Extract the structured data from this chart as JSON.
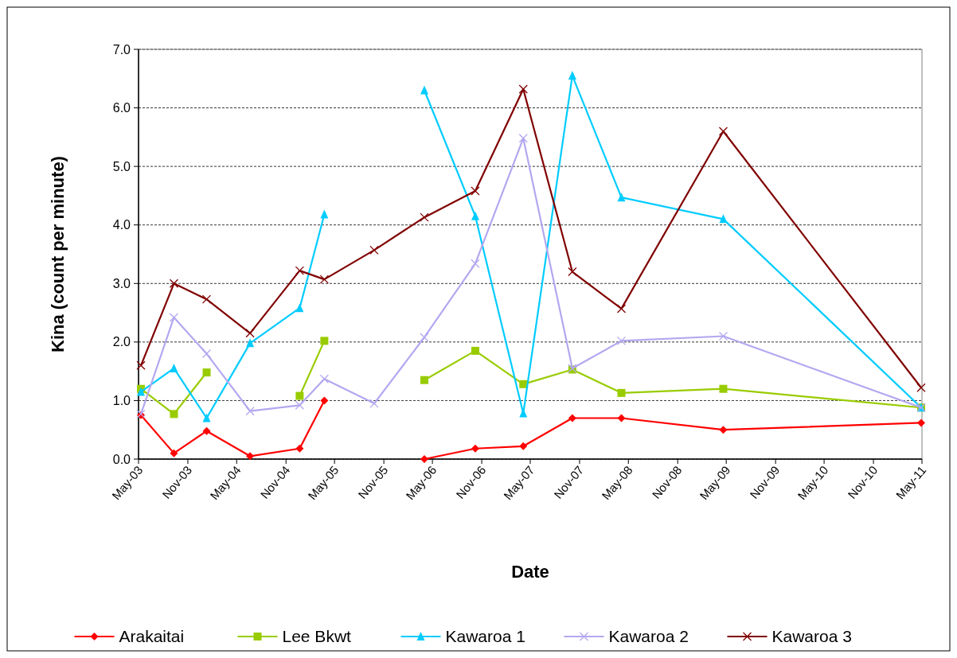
{
  "chart_data": {
    "type": "line",
    "xlabel": "Date",
    "ylabel": "Kina (count per minute)",
    "x": [
      "2003-05-10",
      "2003-09-10",
      "2004-01-10",
      "2004-06-20",
      "2004-12-22",
      "2005-03-24",
      "2005-09-26",
      "2006-04-01",
      "2006-10-08",
      "2007-04-05",
      "2007-10-05",
      "2008-04-05",
      "2009-04-20",
      "2011-04-28"
    ],
    "series": [
      {
        "name": "Arakaitai",
        "color": "#ff0000",
        "marker": "diamond",
        "values": [
          0.75,
          0.1,
          0.48,
          0.05,
          0.18,
          1.0,
          null,
          0.0,
          0.18,
          0.22,
          0.7,
          0.7,
          0.5,
          0.62
        ]
      },
      {
        "name": "Lee Bkwt",
        "color": "#99cc00",
        "marker": "square",
        "values": [
          1.2,
          0.77,
          1.48,
          null,
          1.08,
          2.02,
          null,
          1.35,
          1.85,
          1.28,
          1.53,
          1.13,
          1.2,
          0.88
        ]
      },
      {
        "name": "Kawaroa 1",
        "color": "#00ccff",
        "marker": "triangle",
        "values": [
          1.15,
          1.55,
          0.7,
          1.98,
          2.58,
          4.18,
          null,
          6.3,
          4.15,
          0.78,
          6.55,
          4.47,
          4.1,
          0.88
        ]
      },
      {
        "name": "Kawaroa 2",
        "color": "#b4a7f0",
        "marker": "cross",
        "values": [
          0.77,
          2.42,
          1.8,
          0.82,
          0.92,
          1.37,
          0.95,
          2.08,
          3.34,
          5.48,
          1.55,
          2.02,
          2.1,
          0.88
        ]
      },
      {
        "name": "Kawaroa 3",
        "color": "#800000",
        "marker": "cross",
        "values": [
          1.6,
          3.0,
          2.73,
          2.15,
          3.22,
          3.07,
          3.57,
          4.13,
          4.58,
          6.32,
          3.2,
          2.57,
          5.6,
          1.22
        ]
      }
    ],
    "xlim": [
      "2003-05-01",
      "2011-05-01"
    ],
    "xticks": [
      {
        "value": "2003-05-01",
        "label": "May-03"
      },
      {
        "value": "2003-11-01",
        "label": "Nov-03"
      },
      {
        "value": "2004-05-01",
        "label": "May-04"
      },
      {
        "value": "2004-11-01",
        "label": "Nov-04"
      },
      {
        "value": "2005-05-01",
        "label": "May-05"
      },
      {
        "value": "2005-11-01",
        "label": "Nov-05"
      },
      {
        "value": "2006-05-01",
        "label": "May-06"
      },
      {
        "value": "2006-11-01",
        "label": "Nov-06"
      },
      {
        "value": "2007-05-01",
        "label": "May-07"
      },
      {
        "value": "2007-11-01",
        "label": "Nov-07"
      },
      {
        "value": "2008-05-01",
        "label": "May-08"
      },
      {
        "value": "2008-11-01",
        "label": "Nov-08"
      },
      {
        "value": "2009-05-01",
        "label": "May-09"
      },
      {
        "value": "2009-11-01",
        "label": "Nov-09"
      },
      {
        "value": "2010-05-01",
        "label": "May-10"
      },
      {
        "value": "2010-11-01",
        "label": "Nov-10"
      },
      {
        "value": "2011-05-01",
        "label": "May-11"
      }
    ],
    "ylim": [
      0,
      7
    ],
    "yticks": [
      {
        "value": 0,
        "label": "0.0"
      },
      {
        "value": 1,
        "label": "1.0"
      },
      {
        "value": 2,
        "label": "2.0"
      },
      {
        "value": 3,
        "label": "3.0"
      },
      {
        "value": 4,
        "label": "4.0"
      },
      {
        "value": 5,
        "label": "5.0"
      },
      {
        "value": 6,
        "label": "6.0"
      },
      {
        "value": 7,
        "label": "7.0"
      }
    ],
    "grid": "y",
    "legend": "bottom",
    "line_style": "solid"
  }
}
